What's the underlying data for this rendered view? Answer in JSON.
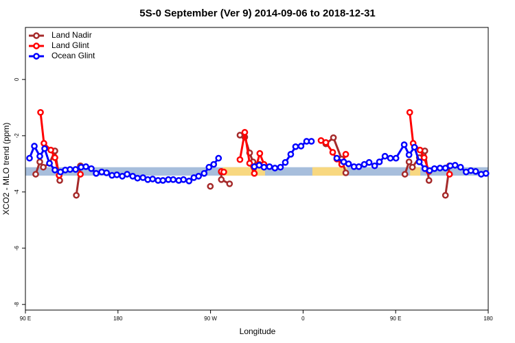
{
  "chart_data": {
    "type": "line",
    "title": "5S-0 September (Ver 9)   2014-09-06 to 2018-12-31",
    "x_label": "Longitude",
    "y_label": "XCO2 - MLO trend (ppm)",
    "xlim": [
      90,
      540
    ],
    "ylim": [
      -8.2,
      1.85
    ],
    "xticks": [
      {
        "value": 90,
        "label": "90 E"
      },
      {
        "value": 180,
        "label": "180"
      },
      {
        "value": 270,
        "label": "90 W"
      },
      {
        "value": 360,
        "label": "0"
      },
      {
        "value": 450,
        "label": "90 E"
      },
      {
        "value": 540,
        "label": "180"
      }
    ],
    "yticks": [
      0,
      -2,
      -4,
      -6,
      -8
    ],
    "legend": "top-left",
    "band": {
      "ylim": [
        -3.42,
        -3.12
      ],
      "color": "#a7bedc",
      "highlights": [
        {
          "xlim": [
            282,
            323
          ],
          "color": "#f8d880"
        },
        {
          "xlim": [
            369,
            403
          ],
          "color": "#f8d880"
        },
        {
          "xlim": [
            464,
            474
          ],
          "color": "#f8d880"
        }
      ]
    },
    "series": [
      {
        "name": "Land Nadir",
        "color": "#a52a2a",
        "x": [
          100.0,
          104.0,
          107.4,
          113.4,
          118.7,
          123.4,
          null,
          139.5,
          143.5,
          null,
          269.8,
          null,
          280.5,
          280.5,
          288.5,
          null,
          298.6,
          303.3,
          308.0,
          311.3,
          317.3,
          null,
          382.1,
          389.5,
          397.5,
          401.5,
          null,
          459.0,
          463.0,
          466.3,
          473.0,
          478.4,
          482.4,
          null,
          498.4,
          502.4
        ],
        "values": [
          -3.37,
          -2.93,
          -3.12,
          -2.98,
          -2.54,
          -3.59,
          null,
          -4.12,
          -3.07,
          null,
          -3.8,
          null,
          -3.29,
          -3.56,
          -3.71,
          null,
          -1.98,
          -2.05,
          -2.61,
          -2.93,
          -3.02,
          null,
          -2.29,
          -2.07,
          -2.83,
          -3.32,
          null,
          -3.37,
          -2.93,
          -3.12,
          -2.78,
          -2.54,
          -3.59,
          null,
          -4.12,
          -3.07
        ]
      },
      {
        "name": "Land Glint",
        "color": "#ff0000",
        "x": [
          104.7,
          108.0,
          114.7,
          118.7,
          122.8,
          null,
          143.5,
          null,
          280.5,
          282.9,
          null,
          298.6,
          303.3,
          308.0,
          312.6,
          317.9,
          322.0,
          null,
          377.4,
          382.1,
          388.8,
          392.8,
          397.5,
          401.5,
          null,
          463.7,
          467.0,
          473.7,
          477.7,
          482.4,
          null,
          502.4
        ],
        "values": [
          -1.17,
          -2.27,
          -2.51,
          -2.78,
          -3.41,
          null,
          -3.37,
          null,
          -3.27,
          -3.29,
          null,
          -2.85,
          -1.88,
          -2.98,
          -3.34,
          -2.63,
          -3.02,
          null,
          -2.17,
          -2.24,
          -2.59,
          -2.83,
          -3.02,
          -2.66,
          null,
          -1.17,
          -2.27,
          -2.51,
          -2.78,
          -3.27,
          null,
          -3.37
        ]
      },
      {
        "name": "Ocean Glint",
        "color": "#0000ff",
        "x": [
          94.0,
          98.7,
          104.0,
          108.7,
          113.4,
          118.7,
          124.1,
          128.8,
          133.4,
          138.8,
          144.1,
          148.8,
          154.1,
          158.8,
          164.2,
          168.9,
          174.2,
          178.9,
          184.2,
          188.9,
          194.3,
          199.0,
          204.3,
          209.0,
          213.7,
          219.0,
          223.7,
          229.0,
          233.7,
          239.1,
          243.7,
          249.1,
          253.8,
          258.4,
          263.8,
          268.5,
          273.1,
          277.8,
          null,
          312.6,
          317.3,
          322.0,
          327.3,
          332.6,
          338.0,
          342.7,
          348.0,
          352.7,
          358.0,
          363.4,
          368.1,
          null,
          392.8,
          399.5,
          404.2,
          409.5,
          414.2,
          419.5,
          424.2,
          429.6,
          434.2,
          439.6,
          444.9,
          450.3,
          458.3,
          463.0,
          468.3,
          473.0,
          478.4,
          483.0,
          487.7,
          493.1,
          498.4,
          503.1,
          507.8,
          513.1,
          518.5,
          523.1,
          527.8,
          533.2,
          537.8
        ],
        "values": [
          -2.8,
          -2.37,
          -2.73,
          -2.46,
          -2.98,
          -3.22,
          -3.29,
          -3.22,
          -3.2,
          -3.2,
          -3.12,
          -3.1,
          -3.17,
          -3.34,
          -3.29,
          -3.32,
          -3.41,
          -3.39,
          -3.44,
          -3.37,
          -3.44,
          -3.51,
          -3.49,
          -3.56,
          -3.54,
          -3.59,
          -3.59,
          -3.56,
          -3.56,
          -3.59,
          -3.56,
          -3.61,
          -3.49,
          -3.44,
          -3.34,
          -3.12,
          -3.02,
          -2.8,
          null,
          -3.1,
          -3.05,
          -3.12,
          -3.1,
          -3.15,
          -3.12,
          -2.95,
          -2.66,
          -2.39,
          -2.37,
          -2.2,
          -2.2,
          null,
          -2.8,
          -2.93,
          -3.0,
          -3.1,
          -3.1,
          -3.02,
          -2.95,
          -3.07,
          -2.93,
          -2.73,
          -2.8,
          -2.8,
          -2.32,
          -2.68,
          -2.41,
          -2.93,
          -3.17,
          -3.24,
          -3.17,
          -3.15,
          -3.15,
          -3.07,
          -3.05,
          -3.12,
          -3.29,
          -3.24,
          -3.27,
          -3.37,
          -3.34
        ]
      }
    ]
  }
}
